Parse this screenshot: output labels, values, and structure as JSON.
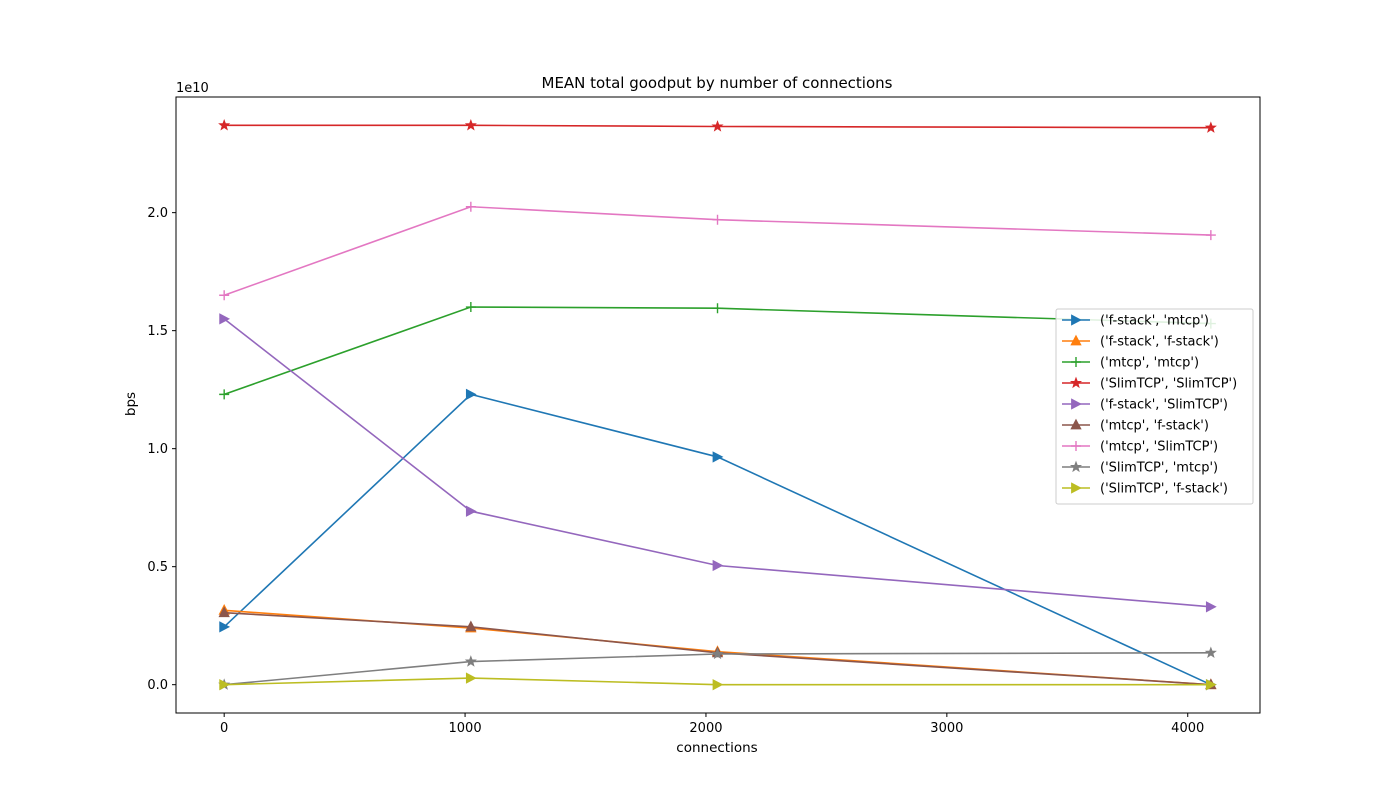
{
  "chart_data": {
    "type": "line",
    "title": "MEAN total goodput by number of connections",
    "xlabel": "connections",
    "ylabel": "bps",
    "y_offset_label": "1e10",
    "x": [
      0,
      1024,
      2048,
      4096
    ],
    "xlim": [
      -200,
      4300
    ],
    "ylim": [
      -1.2,
      24.9
    ],
    "x_ticks": [
      0,
      1000,
      2000,
      3000,
      4000
    ],
    "x_tick_labels": [
      "0",
      "1000",
      "2000",
      "3000",
      "4000"
    ],
    "y_ticks": [
      0,
      5,
      10,
      15,
      20
    ],
    "y_tick_labels": [
      "0.0",
      "0.5",
      "1.0",
      "1.5",
      "2.0"
    ],
    "grid": false,
    "legend_position": "center-right",
    "series": [
      {
        "name": "('f-stack', 'mtcp')",
        "color": "#1f77b4",
        "marker": "triangle-right",
        "values": [
          2.45,
          12.3,
          9.65,
          0.0
        ]
      },
      {
        "name": "('f-stack', 'f-stack')",
        "color": "#ff7f0e",
        "marker": "triangle-up",
        "values": [
          3.15,
          2.4,
          1.4,
          0.0
        ]
      },
      {
        "name": "('mtcp', 'mtcp')",
        "color": "#2ca02c",
        "marker": "plus",
        "values": [
          12.3,
          16.0,
          15.95,
          15.3
        ]
      },
      {
        "name": "('SlimTCP', 'SlimTCP')",
        "color": "#d62728",
        "marker": "star",
        "values": [
          23.7,
          23.7,
          23.65,
          23.6
        ]
      },
      {
        "name": "('f-stack', 'SlimTCP')",
        "color": "#9467bd",
        "marker": "triangle-right",
        "values": [
          15.5,
          7.35,
          5.05,
          3.3
        ]
      },
      {
        "name": "('mtcp', 'f-stack')",
        "color": "#8c564b",
        "marker": "triangle-up",
        "values": [
          3.05,
          2.45,
          1.35,
          0.0
        ]
      },
      {
        "name": "('mtcp', 'SlimTCP')",
        "color": "#e377c2",
        "marker": "plus",
        "values": [
          16.5,
          20.25,
          19.7,
          19.05
        ]
      },
      {
        "name": "('SlimTCP', 'mtcp')",
        "color": "#7f7f7f",
        "marker": "star",
        "values": [
          0.0,
          0.98,
          1.3,
          1.35
        ]
      },
      {
        "name": "('SlimTCP', 'f-stack')",
        "color": "#bcbd22",
        "marker": "triangle-right",
        "values": [
          0.0,
          0.28,
          0.0,
          0.0
        ]
      }
    ]
  }
}
